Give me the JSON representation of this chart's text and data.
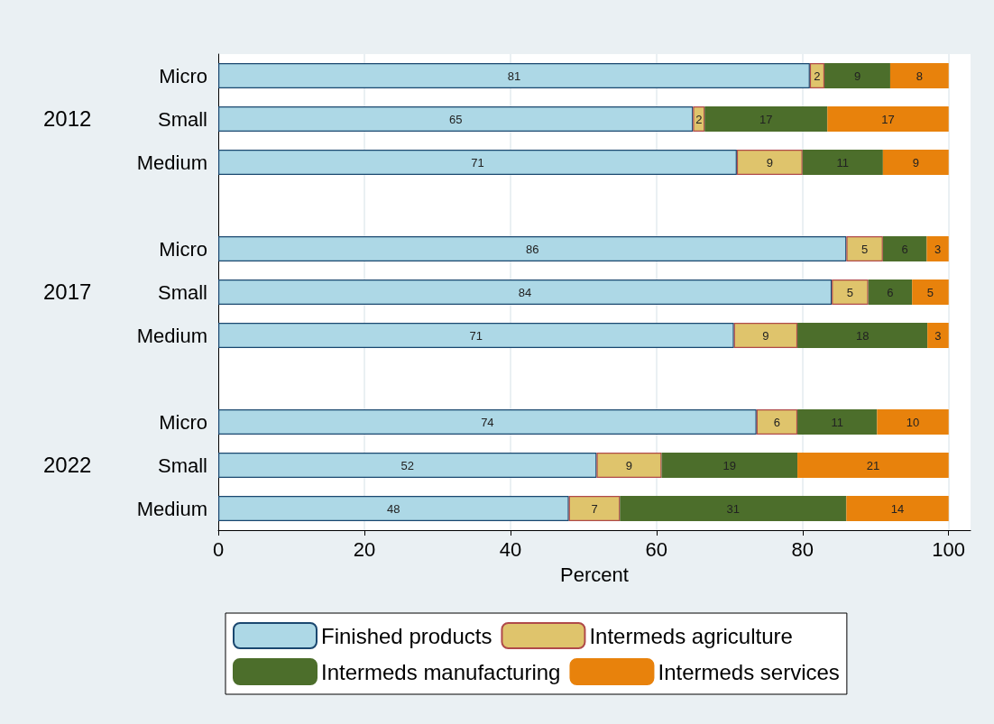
{
  "chart_data": {
    "type": "bar",
    "orientation": "horizontal",
    "stacked": true,
    "categories": [
      "Micro",
      "Small",
      "Medium",
      null,
      "Micro",
      "Small",
      "Medium",
      null,
      "Micro",
      "Small",
      "Medium"
    ],
    "series": [
      {
        "name": "Finished products",
        "color": "#add8e6",
        "values": [
          81,
          65.0,
          71,
          null,
          86,
          84,
          70.6,
          null,
          73.7,
          51.8,
          48
        ],
        "value_labels": [
          "81",
          "65",
          "71",
          null,
          "86",
          "84",
          "71",
          null,
          "74",
          "52",
          "48"
        ]
      },
      {
        "name": "Intermeds agriculture",
        "color": "#dfc46c",
        "values": [
          2,
          1.6,
          9,
          null,
          5,
          5,
          8.7,
          null,
          5.6,
          8.9,
          7
        ],
        "value_labels": [
          "2",
          "2",
          "9",
          null,
          "5",
          "5",
          "9",
          null,
          "6",
          "9",
          "7"
        ]
      },
      {
        "name": "Intermeds manufacturing",
        "color": "#4c6e2b",
        "values": [
          9,
          16.8,
          11,
          null,
          6,
          6,
          17.8,
          null,
          10.9,
          18.6,
          31
        ],
        "value_labels": [
          "9",
          "17",
          "11",
          null,
          "6",
          "6",
          "18",
          null,
          "11",
          "19",
          "31"
        ]
      },
      {
        "name": "Intermeds services",
        "color": "#e8820c",
        "values": [
          8,
          16.6,
          9,
          null,
          3,
          5,
          2.9,
          null,
          9.8,
          20.7,
          14
        ],
        "value_labels": [
          "8",
          "17",
          "9",
          null,
          "3",
          "5",
          "3",
          null,
          "10",
          "21",
          "14"
        ]
      }
    ],
    "annotations": [
      "2012",
      "2017",
      "2022"
    ],
    "xlabel": "Percent",
    "xlim": [
      0,
      103
    ],
    "xticks": [
      0,
      20,
      40,
      60,
      80,
      100
    ],
    "grid": "x",
    "legend": "bottom"
  }
}
